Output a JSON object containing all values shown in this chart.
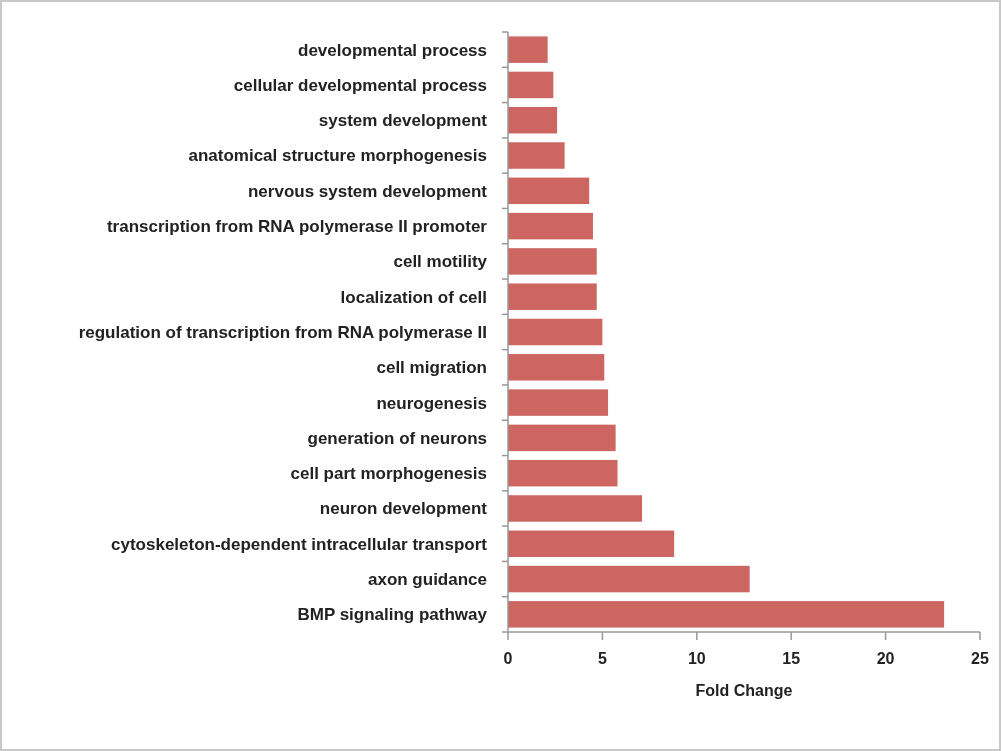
{
  "chart_data": {
    "type": "bar",
    "orientation": "horizontal",
    "xlabel": "Fold Change",
    "categories": [
      "developmental process",
      "cellular developmental process",
      "system development",
      "anatomical structure morphogenesis",
      "nervous system development",
      "transcription from RNA polymerase II promoter",
      "cell motility",
      "localization of cell",
      "regulation of transcription from RNA polymerase II",
      "cell migration",
      "neurogenesis",
      "generation of neurons",
      "cell part morphogenesis",
      "neuron development",
      "cytoskeleton-dependent intracellular transport",
      "axon guidance",
      "BMP signaling pathway"
    ],
    "values": [
      2.1,
      2.4,
      2.6,
      3.0,
      4.3,
      4.5,
      4.7,
      4.7,
      5.0,
      5.1,
      5.3,
      5.7,
      5.8,
      7.1,
      8.8,
      12.8,
      23.1
    ],
    "color": "#cd6660",
    "xlim": [
      0,
      25
    ],
    "xticks": [
      0,
      5,
      10,
      15,
      20,
      25
    ],
    "grid": false
  }
}
